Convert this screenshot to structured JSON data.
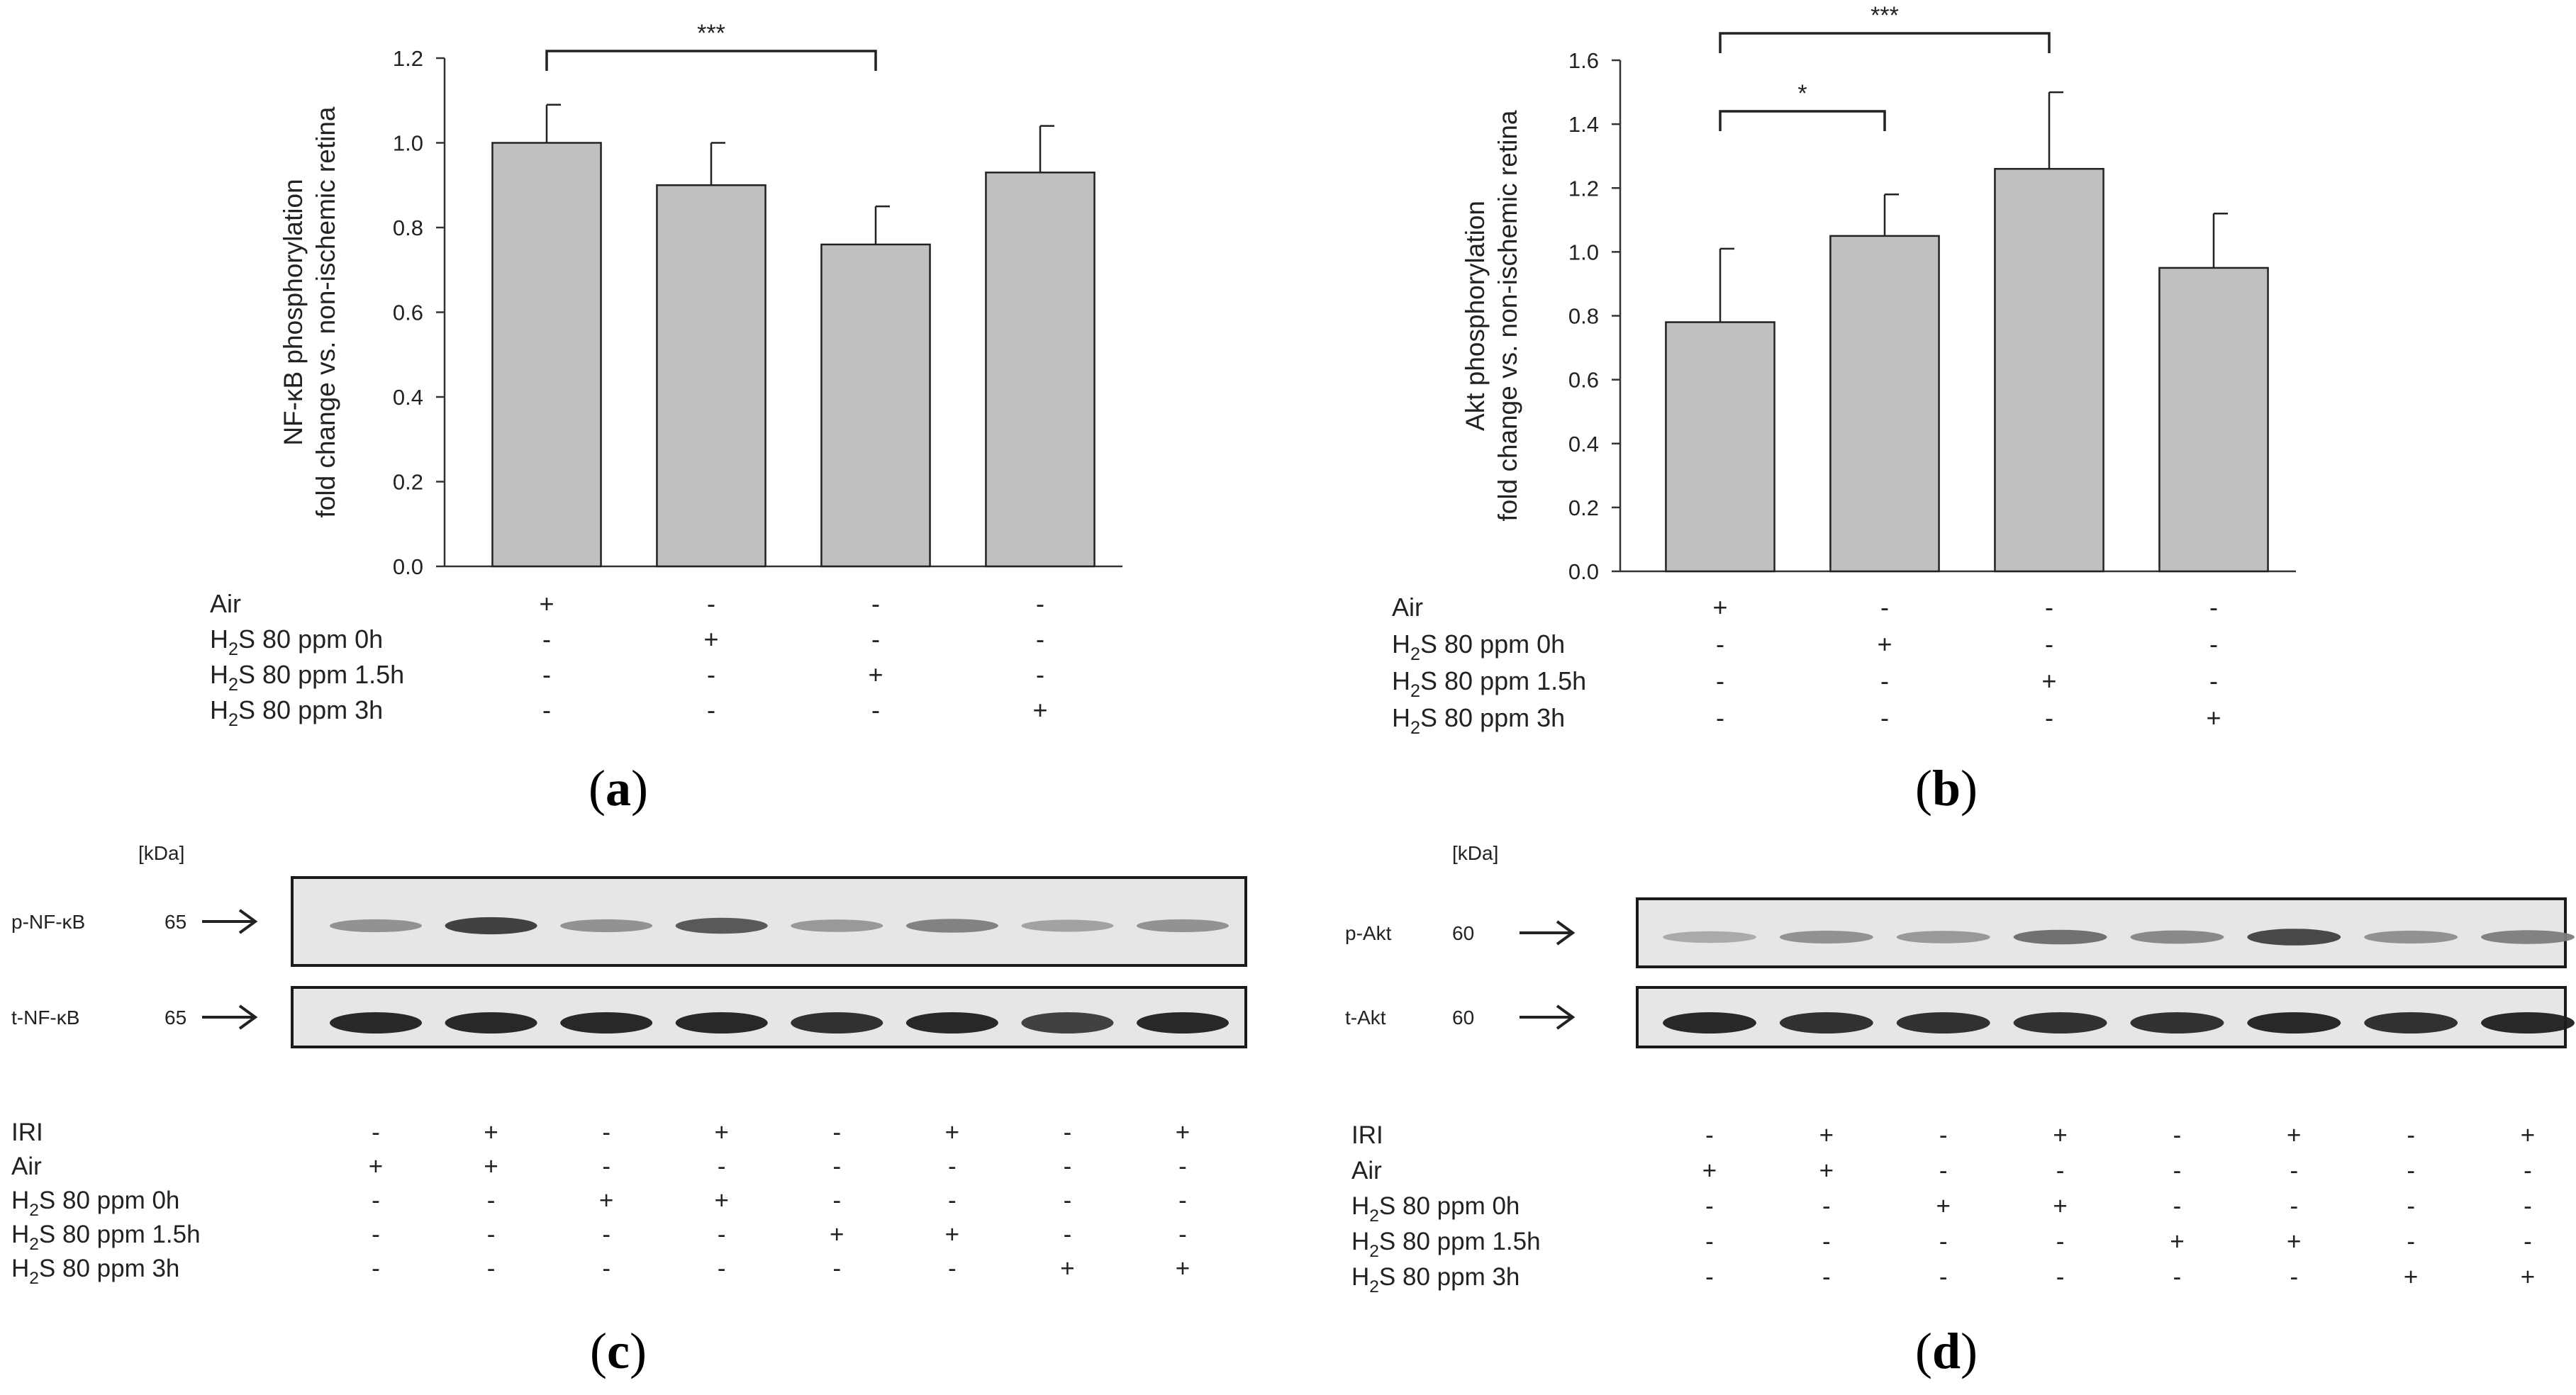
{
  "panels": {
    "a": {
      "label": "(a)",
      "letter": "a"
    },
    "b": {
      "label": "(b)",
      "letter": "b"
    },
    "c": {
      "label": "(c)",
      "letter": "c"
    },
    "d": {
      "label": "(d)",
      "letter": "d"
    }
  },
  "chart_data": [
    {
      "id": "a",
      "type": "bar",
      "ylabel": [
        "NF-κB phosphorylation",
        "fold change vs. non-ischemic retina"
      ],
      "ylim": [
        0,
        1.2
      ],
      "yticks": [
        "0.0",
        "0.2",
        "0.4",
        "0.6",
        "0.8",
        "1.0",
        "1.2"
      ],
      "values": [
        1.0,
        0.9,
        0.76,
        0.93
      ],
      "errors": [
        0.09,
        0.1,
        0.09,
        0.11
      ],
      "bar_color": "#c0c0c0",
      "significance": [
        {
          "from": 0,
          "to": 2,
          "label": "***"
        }
      ],
      "condition_rows": [
        {
          "label": "Air",
          "signs": [
            "+",
            "-",
            "-",
            "-"
          ]
        },
        {
          "label": "H2S 80 ppm 0h",
          "signs": [
            "-",
            "+",
            "-",
            "-"
          ]
        },
        {
          "label": "H2S 80 ppm 1.5h",
          "signs": [
            "-",
            "-",
            "+",
            "-"
          ]
        },
        {
          "label": "H2S 80 ppm 3h",
          "signs": [
            "-",
            "-",
            "-",
            "+"
          ]
        }
      ]
    },
    {
      "id": "b",
      "type": "bar",
      "ylabel": [
        "Akt phosphorylation",
        "fold change vs. non-ischemic retina"
      ],
      "ylim": [
        0,
        1.6
      ],
      "yticks": [
        "0.0",
        "0.2",
        "0.4",
        "0.6",
        "0.8",
        "1.0",
        "1.2",
        "1.4",
        "1.6"
      ],
      "values": [
        0.78,
        1.05,
        1.26,
        0.95
      ],
      "errors": [
        0.23,
        0.13,
        0.24,
        0.17
      ],
      "bar_color": "#c0c0c0",
      "significance": [
        {
          "from": 0,
          "to": 1,
          "label": "*"
        },
        {
          "from": 0,
          "to": 2,
          "label": "***"
        }
      ],
      "condition_rows": [
        {
          "label": "Air",
          "signs": [
            "+",
            "-",
            "-",
            "-"
          ]
        },
        {
          "label": "H2S 80 ppm 0h",
          "signs": [
            "-",
            "+",
            "-",
            "-"
          ]
        },
        {
          "label": "H2S 80 ppm 1.5h",
          "signs": [
            "-",
            "-",
            "+",
            "-"
          ]
        },
        {
          "label": "H2S 80 ppm 3h",
          "signs": [
            "-",
            "-",
            "-",
            "+"
          ]
        }
      ]
    }
  ],
  "blots": [
    {
      "id": "c",
      "unit": "[kDa]",
      "rows": [
        {
          "name": "p-NF-κB",
          "kda": "65",
          "intensities": [
            0.35,
            0.85,
            0.35,
            0.7,
            0.3,
            0.45,
            0.25,
            0.35
          ]
        },
        {
          "name": "t-NF-κB",
          "kda": "65",
          "intensities": [
            1,
            1,
            1,
            1,
            0.95,
            1,
            0.85,
            1
          ]
        }
      ],
      "condition_rows": [
        {
          "label": "IRI",
          "signs": [
            "-",
            "+",
            "-",
            "+",
            "-",
            "+",
            "-",
            "+"
          ]
        },
        {
          "label": "Air",
          "signs": [
            "+",
            "+",
            "-",
            "-",
            "-",
            "-",
            "-",
            "-"
          ]
        },
        {
          "label": "H2S 80 ppm 0h",
          "signs": [
            "-",
            "-",
            "+",
            "+",
            "-",
            "-",
            "-",
            "-"
          ]
        },
        {
          "label": "H2S 80 ppm 1.5h",
          "signs": [
            "-",
            "-",
            "-",
            "-",
            "+",
            "+",
            "-",
            "-"
          ]
        },
        {
          "label": "H2S 80 ppm 3h",
          "signs": [
            "-",
            "-",
            "-",
            "-",
            "-",
            "-",
            "+",
            "+"
          ]
        }
      ]
    },
    {
      "id": "d",
      "unit": "[kDa]",
      "rows": [
        {
          "name": "p-Akt",
          "kda": "60",
          "intensities": [
            0.2,
            0.35,
            0.3,
            0.55,
            0.4,
            0.8,
            0.35,
            0.45
          ]
        },
        {
          "name": "t-Akt",
          "kda": "60",
          "intensities": [
            1,
            0.95,
            0.95,
            0.95,
            0.95,
            1,
            0.95,
            1
          ]
        }
      ],
      "condition_rows": [
        {
          "label": "IRI",
          "signs": [
            "-",
            "+",
            "-",
            "+",
            "-",
            "+",
            "-",
            "+"
          ]
        },
        {
          "label": "Air",
          "signs": [
            "+",
            "+",
            "-",
            "-",
            "-",
            "-",
            "-",
            "-"
          ]
        },
        {
          "label": "H2S 80 ppm 0h",
          "signs": [
            "-",
            "-",
            "+",
            "+",
            "-",
            "-",
            "-",
            "-"
          ]
        },
        {
          "label": "H2S 80 ppm 1.5h",
          "signs": [
            "-",
            "-",
            "-",
            "-",
            "+",
            "+",
            "-",
            "-"
          ]
        },
        {
          "label": "H2S 80 ppm 3h",
          "signs": [
            "-",
            "-",
            "-",
            "-",
            "-",
            "-",
            "+",
            "+"
          ]
        }
      ]
    }
  ]
}
